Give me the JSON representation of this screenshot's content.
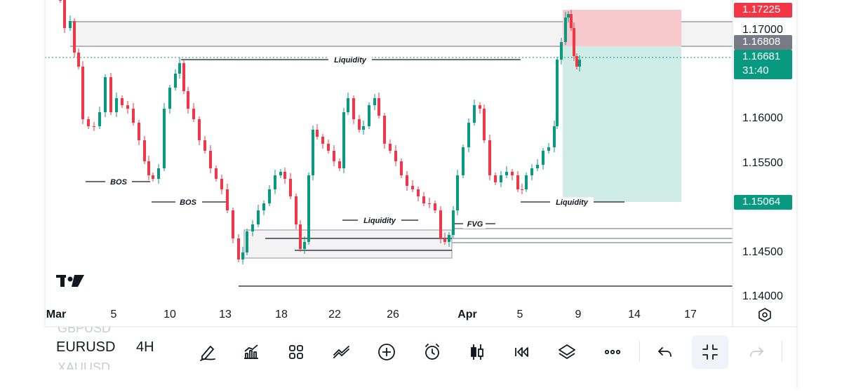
{
  "symbol": {
    "current": "EURUSD",
    "above": "GBPUSD",
    "below": "XAUUSD"
  },
  "interval": "4H",
  "price_axis": {
    "labels": [
      "1.17000",
      "1.16000",
      "1.15500",
      "1.14500",
      "1.14000"
    ]
  },
  "price_tags": {
    "stop": {
      "label": "1.17225",
      "color": "#f23645"
    },
    "entry": {
      "label": "1.16808",
      "color": "#787b86"
    },
    "last": {
      "label": "1.16681",
      "countdown": "31:40",
      "color": "#089981"
    },
    "target": {
      "label": "1.15064",
      "color": "#089981"
    }
  },
  "time_axis": [
    "Mar",
    "5",
    "10",
    "13",
    "18",
    "22",
    "26",
    "Apr",
    "5",
    "9",
    "14",
    "17"
  ],
  "annotations": {
    "liquidity_top": "Liquidity",
    "bos_1": "BOS",
    "bos_2": "BOS",
    "liquidity_mid": "Liquidity",
    "fvg": "FVG",
    "liquidity_right": "Liquidity"
  },
  "logo": "TV",
  "colors": {
    "bull": "#089981",
    "bear": "#f23645",
    "profit_zone": "#cfece6",
    "loss_zone": "#f7c9cd"
  },
  "toolbar": {
    "items": [
      "drawing-tool",
      "indicators",
      "layouts",
      "trend-line",
      "add",
      "alert",
      "bar-style",
      "replay",
      "layers",
      "more",
      "undo",
      "fullscreen-exit",
      "redo"
    ]
  }
}
